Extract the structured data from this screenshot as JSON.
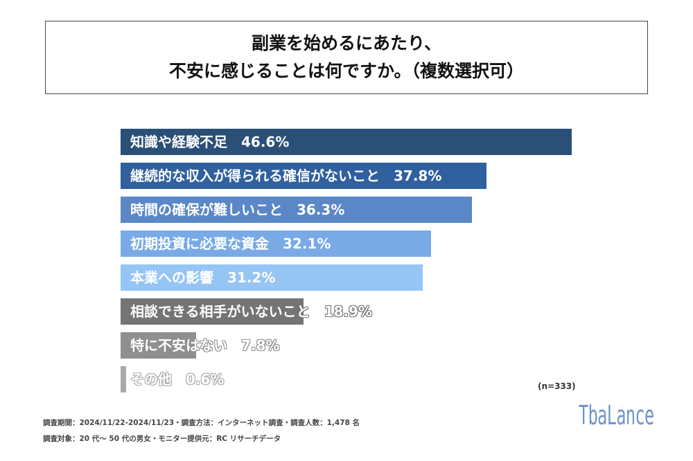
{
  "title": {
    "line1": "副業を始めるにあたり、",
    "line2": "不安に感じることは何ですか。（複数選択可）"
  },
  "chart_data": {
    "type": "bar",
    "orientation": "horizontal",
    "categories": [
      "知識や経験不足",
      "継続的な収入が得られる確信がないこと",
      "時間の確保が難しいこと",
      "初期投資に必要な資金",
      "本業への影響",
      "相談できる相手がいないこと",
      "特に不安はない",
      "その他"
    ],
    "values": [
      46.6,
      37.8,
      36.3,
      32.1,
      31.2,
      18.9,
      7.8,
      0.6
    ],
    "labels": [
      "知識や経験不足　46.6%",
      "継続的な収入が得られる確信がないこと　37.8%",
      "時間の確保が難しいこと　36.3%",
      "初期投資に必要な資金　32.1%",
      "本業への影響　31.2%",
      "相談できる相手がいないこと　18.9%",
      "特に不安はない　7.8%",
      "その他　0.6%"
    ],
    "colors": [
      "#2b5078",
      "#30609e",
      "#5b87c7",
      "#79aae6",
      "#95c5f5",
      "#747474",
      "#8f8f8f",
      "#a9a9a9"
    ],
    "unit": "%",
    "xlim": [
      0,
      50
    ],
    "note": "(n=333)"
  },
  "footer": {
    "line1": "調査期間：2024/11/22-2024/11/23・調査方法：インターネット調査・調査人数：1,478 名",
    "line2": "調査対象：20 代～ 50 代の男女・モニター提供元：RC リサーチデータ"
  },
  "logo": "TbaLance"
}
